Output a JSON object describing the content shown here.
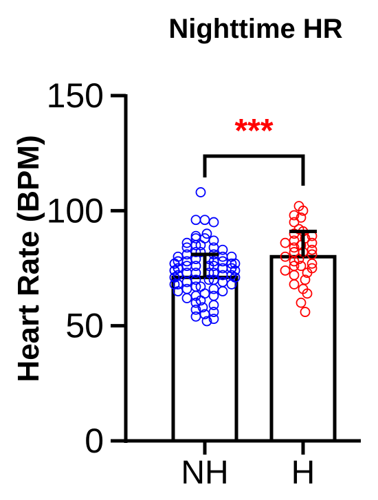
{
  "chart_data": {
    "type": "bar",
    "title": "Nighttime HR",
    "xlabel": "",
    "ylabel": "Heart Rate (BPM)",
    "ylim": [
      0,
      150
    ],
    "yticks": [
      "0",
      "50",
      "100",
      "150"
    ],
    "categories": [
      "NH",
      "H"
    ],
    "series": [
      {
        "values": [
          71,
          80
        ],
        "sd": [
          10,
          11
        ],
        "colors": {
          "points": "#0000ff",
          "bar_fill": "#ffffff",
          "bar_stroke": "#000000"
        },
        "points": [
          [
            108,
            96,
            96,
            95,
            90,
            89,
            88,
            88,
            87,
            86,
            85,
            85,
            84,
            84,
            83,
            82,
            82,
            81,
            81,
            80,
            80,
            80,
            79,
            79,
            78,
            78,
            78,
            78,
            77,
            77,
            77,
            77,
            76,
            76,
            76,
            76,
            75,
            75,
            75,
            74,
            74,
            74,
            73,
            73,
            73,
            73,
            72,
            72,
            72,
            71,
            71,
            71,
            70,
            70,
            70,
            69,
            69,
            68,
            68,
            68,
            67,
            67,
            66,
            66,
            65,
            65,
            64,
            63,
            63,
            62,
            61,
            60,
            59,
            58,
            57,
            56,
            55,
            54,
            53,
            52
          ],
          [
            102,
            100,
            98,
            97,
            95,
            92,
            91,
            90,
            89,
            88,
            87,
            86,
            86,
            85,
            84,
            83,
            82,
            82,
            81,
            80,
            79,
            78,
            77,
            76,
            76,
            75,
            74,
            73,
            72,
            70,
            68,
            66,
            64,
            60,
            56
          ]
        ]
      }
    ],
    "significance": {
      "label": "***",
      "color": "#ff0000",
      "between": [
        "NH",
        "H"
      ]
    },
    "point_colors": [
      "#0000ff",
      "#ff0000"
    ],
    "grid": false,
    "legend": "none"
  }
}
